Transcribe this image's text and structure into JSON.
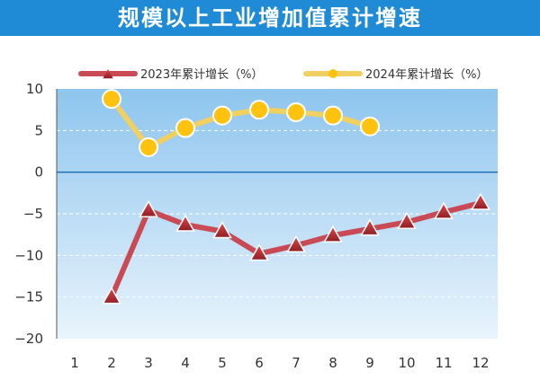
{
  "title": "规模以上工业增加值累计增速",
  "chart_data": {
    "type": "line",
    "categories": [
      "1",
      "2",
      "3",
      "4",
      "5",
      "6",
      "7",
      "8",
      "9",
      "10",
      "11",
      "12"
    ],
    "yticks": [
      "10",
      "5",
      "0",
      "−5",
      "−10",
      "−15",
      "−20"
    ],
    "ylim": [
      -20,
      10
    ],
    "grid": true,
    "legend_position": "top",
    "series": [
      {
        "name": "2023年累计增长（%）",
        "color": "#c94a54",
        "marker": "triangle",
        "values": [
          null,
          -15.0,
          -4.6,
          -6.3,
          -7.1,
          -9.8,
          -8.8,
          -7.6,
          -6.8,
          -6.0,
          -4.8,
          -3.7
        ]
      },
      {
        "name": "2024年累计增长（%）",
        "color": "#f0d060",
        "marker": "circle",
        "values": [
          null,
          8.8,
          3.0,
          5.3,
          6.8,
          7.5,
          7.2,
          6.8,
          5.5,
          null,
          null,
          null
        ]
      }
    ]
  }
}
